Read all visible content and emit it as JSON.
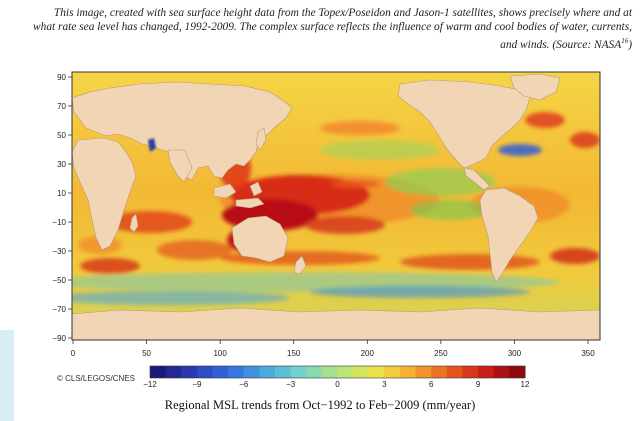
{
  "caption": {
    "text": "This image, created with sea surface height data from the Topex/Poseidon and Jason-1 satellites, shows precisely where and at what rate sea level has changed, 1992-2009. The complex surface reflects the influence of warm and cool bodies of water, currents, and winds. (Source: NASA",
    "ref": "16",
    "close": ")"
  },
  "map": {
    "lat_ticks": [
      "90",
      "70",
      "50",
      "30",
      "10",
      "−10",
      "−30",
      "−50",
      "−70",
      "−90"
    ],
    "lon_ticks": [
      "0",
      "50",
      "100",
      "150",
      "200",
      "250",
      "300",
      "350"
    ],
    "colors": {
      "land": "#f2d5b4",
      "ocean_base": "#f3c93a",
      "rise_high": "#c81015",
      "fall": "#2b55c8"
    }
  },
  "colorbar": {
    "ticks": [
      "−12",
      "−9",
      "−6",
      "−3",
      "0",
      "3",
      "6",
      "9",
      "12"
    ],
    "range": [
      -12,
      12
    ],
    "title": "Regional MSL trends from Oct−1992 to Feb−2009 (mm/year)"
  },
  "credit": "© CLS/LEGOS/CNES"
}
